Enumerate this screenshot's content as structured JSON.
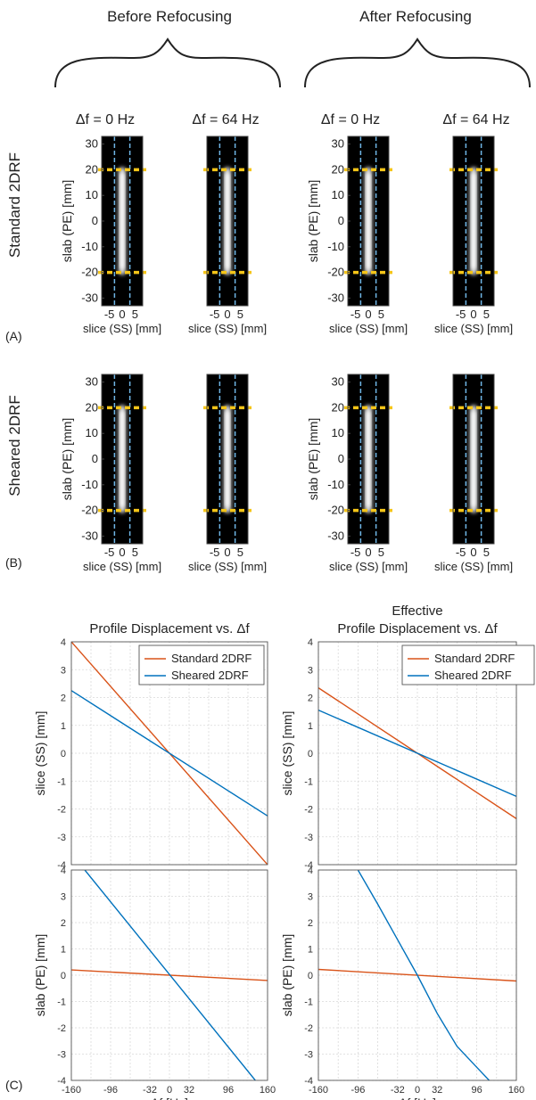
{
  "headers": {
    "before": "Before Refocusing",
    "after": "After Refocusing"
  },
  "panel_letters": {
    "a": "(A)",
    "b": "(B)",
    "c": "(C)"
  },
  "row_labels": {
    "standard": "Standard 2DRF",
    "sheared": "Sheared 2DRF"
  },
  "column_titles": [
    "Δf = 0 Hz",
    "Δf = 64 Hz",
    "Δf = 0 Hz",
    "Δf = 64 Hz"
  ],
  "image_axes": {
    "ylabel": "slab (PE) [mm]",
    "xlabel": "slice (SS) [mm]",
    "yticks": [
      30,
      20,
      10,
      0,
      -10,
      -20,
      -30
    ],
    "xticks": [
      "-5",
      "0",
      "5"
    ]
  },
  "colors": {
    "standard": "#d95319",
    "sheared": "#0072bd",
    "slab_marker": "#f5c518",
    "slice_marker": "#6fb6e6",
    "image_bg": "#000000"
  },
  "chart_data": [
    {
      "type": "line",
      "title": "Profile Displacement vs. Δf",
      "ylabel": "slice (SS) [mm]",
      "xlim": [
        -160,
        160
      ],
      "ylim": [
        -4,
        4
      ],
      "yticks": [
        4,
        3,
        2,
        1,
        0,
        -1,
        -2,
        -3,
        -4
      ],
      "grid": true,
      "legend_position": "top-right",
      "series": [
        {
          "name": "Standard 2DRF",
          "color": "#d95319",
          "x": [
            -160,
            160
          ],
          "y": [
            4.0,
            -4.0
          ]
        },
        {
          "name": "Sheared 2DRF",
          "color": "#0072bd",
          "x": [
            -160,
            160
          ],
          "y": [
            2.25,
            -2.25
          ]
        }
      ]
    },
    {
      "type": "line",
      "title_line1": "Effective",
      "title_line2": "Profile Displacement vs. Δf",
      "ylabel": "slice (SS) [mm]",
      "xlim": [
        -160,
        160
      ],
      "ylim": [
        -4,
        4
      ],
      "yticks": [
        4,
        3,
        2,
        1,
        0,
        -1,
        -2,
        -3,
        -4
      ],
      "grid": true,
      "legend_position": "top-right",
      "series": [
        {
          "name": "Standard 2DRF",
          "color": "#d95319",
          "x": [
            -160,
            160
          ],
          "y": [
            2.35,
            -2.35
          ]
        },
        {
          "name": "Sheared 2DRF",
          "color": "#0072bd",
          "x": [
            -160,
            160
          ],
          "y": [
            1.55,
            -1.55
          ]
        }
      ]
    },
    {
      "type": "line",
      "ylabel": "slab (PE) [mm]",
      "xlabel": "Δf [Hz]",
      "xlim": [
        -160,
        160
      ],
      "ylim": [
        -4,
        4
      ],
      "xticks": [
        -160,
        -96,
        -32,
        0,
        32,
        96,
        160
      ],
      "yticks": [
        4,
        3,
        2,
        1,
        0,
        -1,
        -2,
        -3,
        -4
      ],
      "grid": true,
      "series": [
        {
          "name": "Standard 2DRF",
          "color": "#d95319",
          "x": [
            -160,
            160
          ],
          "y": [
            0.2,
            -0.2
          ]
        },
        {
          "name": "Sheared 2DRF",
          "color": "#0072bd",
          "x": [
            -138,
            140
          ],
          "y": [
            4.0,
            -4.0
          ]
        }
      ]
    },
    {
      "type": "line",
      "ylabel": "slab (PE) [mm]",
      "xlabel": "Δf [Hz]",
      "xlim": [
        -160,
        160
      ],
      "ylim": [
        -4,
        4
      ],
      "xticks": [
        -160,
        -96,
        -32,
        0,
        32,
        96,
        160
      ],
      "yticks": [
        4,
        3,
        2,
        1,
        0,
        -1,
        -2,
        -3,
        -4
      ],
      "grid": true,
      "series": [
        {
          "name": "Standard 2DRF",
          "color": "#d95319",
          "x": [
            -160,
            160
          ],
          "y": [
            0.22,
            -0.22
          ]
        },
        {
          "name": "Sheared 2DRF",
          "color": "#0072bd",
          "x": [
            -96,
            -64,
            -32,
            0,
            32,
            64,
            96,
            116
          ],
          "y": [
            4.0,
            2.7,
            1.35,
            0.0,
            -1.45,
            -2.7,
            -3.5,
            -4.0
          ]
        }
      ]
    }
  ]
}
